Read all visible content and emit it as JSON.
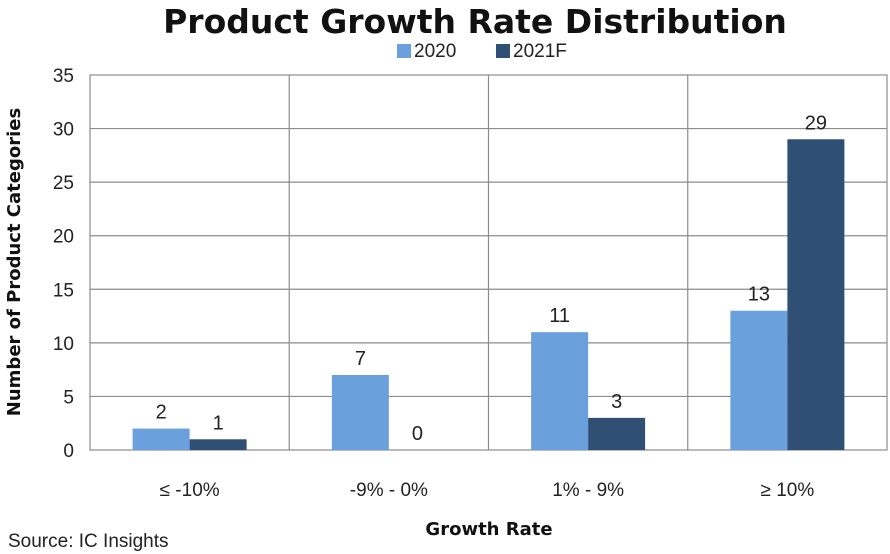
{
  "chart_data": {
    "type": "bar",
    "title": "Product Growth Rate Distribution",
    "xlabel": "Growth Rate",
    "ylabel": "Number of Product Categories",
    "categories": [
      "≤ -10%",
      "-9% - 0%",
      "1% - 9%",
      "≥ 10%"
    ],
    "series": [
      {
        "name": "2020",
        "color": "#6aa0dc",
        "values": [
          2,
          7,
          11,
          13
        ]
      },
      {
        "name": "2021F",
        "color": "#2f4f74",
        "values": [
          1,
          0,
          3,
          29
        ]
      }
    ],
    "ylim": [
      0,
      35
    ],
    "yticks": [
      0,
      5,
      10,
      15,
      20,
      25,
      30,
      35
    ],
    "grid": true,
    "legend_position": "top-center",
    "source": "Source:  IC Insights"
  }
}
